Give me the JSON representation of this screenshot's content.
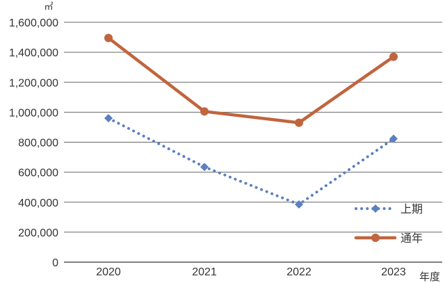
{
  "chart_data": {
    "type": "line",
    "y_unit": "㎡",
    "xlabel": "年度",
    "categories": [
      "2020",
      "2021",
      "2022",
      "2023"
    ],
    "ylim": [
      0,
      1600000
    ],
    "yticks": [
      0,
      200000,
      400000,
      600000,
      800000,
      1000000,
      1200000,
      1400000,
      1600000
    ],
    "ytick_labels": [
      "0",
      "200,000",
      "400,000",
      "600,000",
      "800,000",
      "1,000,000",
      "1,200,000",
      "1,400,000",
      "1,600,000"
    ],
    "grid": true,
    "legend_position": "bottom-right",
    "series": [
      {
        "name": "上期",
        "values": [
          960000,
          635000,
          385000,
          823000
        ],
        "color": "#5b7fc0",
        "style": "dotted",
        "marker": "diamond"
      },
      {
        "name": "通年",
        "values": [
          1495000,
          1005000,
          930000,
          1370000
        ],
        "color": "#c0653e",
        "style": "solid",
        "marker": "circle"
      }
    ]
  }
}
